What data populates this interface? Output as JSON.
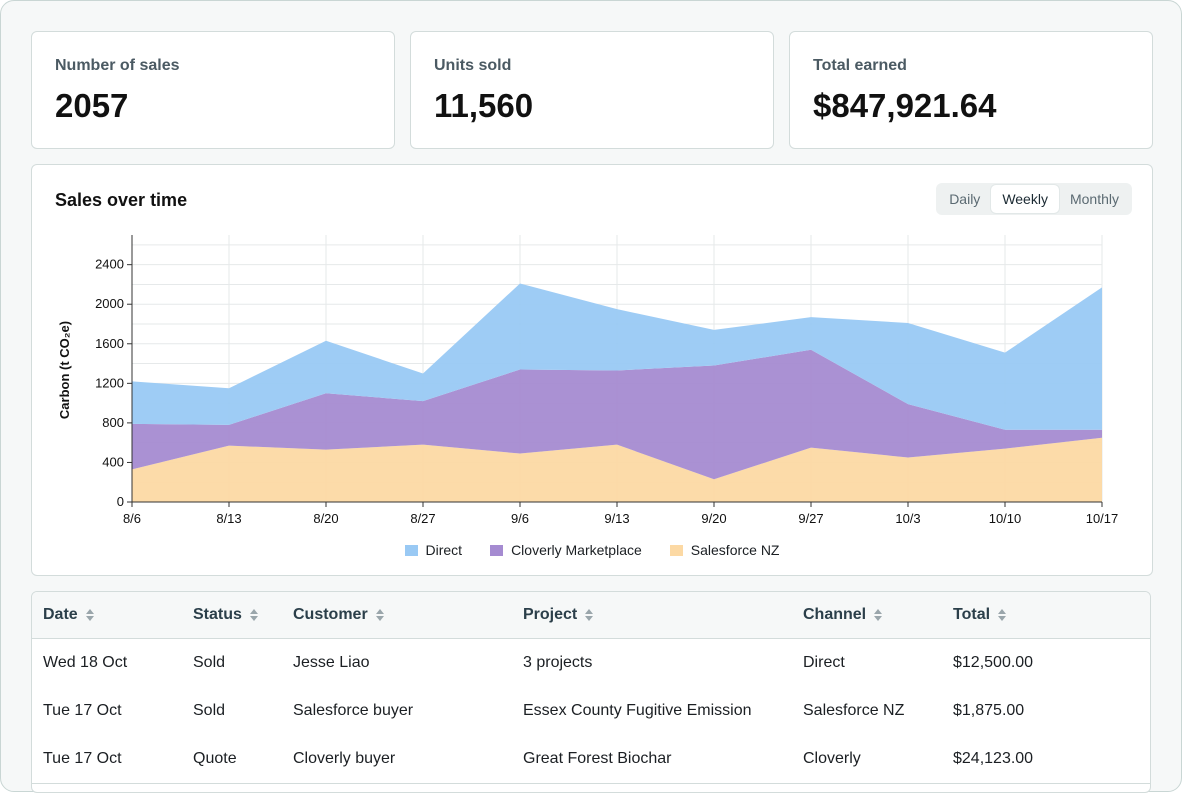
{
  "stats": [
    {
      "label": "Number of sales",
      "value": "2057"
    },
    {
      "label": "Units sold",
      "value": "11,560"
    },
    {
      "label": "Total earned",
      "value": "$847,921.64"
    }
  ],
  "chart": {
    "title": "Sales over time",
    "views": [
      "Daily",
      "Weekly",
      "Monthly"
    ],
    "active_view": "Weekly"
  },
  "chart_data": {
    "type": "area",
    "stacked": true,
    "title": "Sales over time",
    "xlabel": "",
    "ylabel": "Carbon (t CO₂e)",
    "ylim": [
      0,
      2700
    ],
    "yticks": [
      0,
      400,
      800,
      1200,
      1600,
      2000,
      2400
    ],
    "grid": true,
    "legend_position": "bottom",
    "categories": [
      "8/6",
      "8/13",
      "8/20",
      "8/27",
      "9/6",
      "9/13",
      "9/20",
      "9/27",
      "10/3",
      "10/10",
      "10/17"
    ],
    "series": [
      {
        "name": "Salesforce NZ",
        "color": "#fcd9a4",
        "values": [
          330,
          570,
          530,
          580,
          490,
          580,
          230,
          550,
          450,
          540,
          650
        ]
      },
      {
        "name": "Cloverly Marketplace",
        "color": "#a58bd1",
        "values": [
          460,
          210,
          570,
          440,
          850,
          750,
          1150,
          990,
          540,
          190,
          80
        ]
      },
      {
        "name": "Direct",
        "color": "#99c9f4",
        "values": [
          430,
          370,
          530,
          280,
          870,
          620,
          360,
          330,
          820,
          780,
          1440
        ]
      }
    ]
  },
  "legend_order": [
    "Direct",
    "Cloverly Marketplace",
    "Salesforce NZ"
  ],
  "table": {
    "columns": [
      "Date",
      "Status",
      "Customer",
      "Project",
      "Channel",
      "Total"
    ],
    "rows": [
      [
        "Wed 18 Oct",
        "Sold",
        "Jesse Liao",
        "3 projects",
        "Direct",
        "$12,500.00"
      ],
      [
        "Tue 17 Oct",
        "Sold",
        "Salesforce buyer",
        "Essex County Fugitive Emission",
        "Salesforce NZ",
        "$1,875.00"
      ],
      [
        "Tue 17 Oct",
        "Quote",
        "Cloverly buyer",
        "Great Forest Biochar",
        "Cloverly",
        "$24,123.00"
      ]
    ]
  }
}
